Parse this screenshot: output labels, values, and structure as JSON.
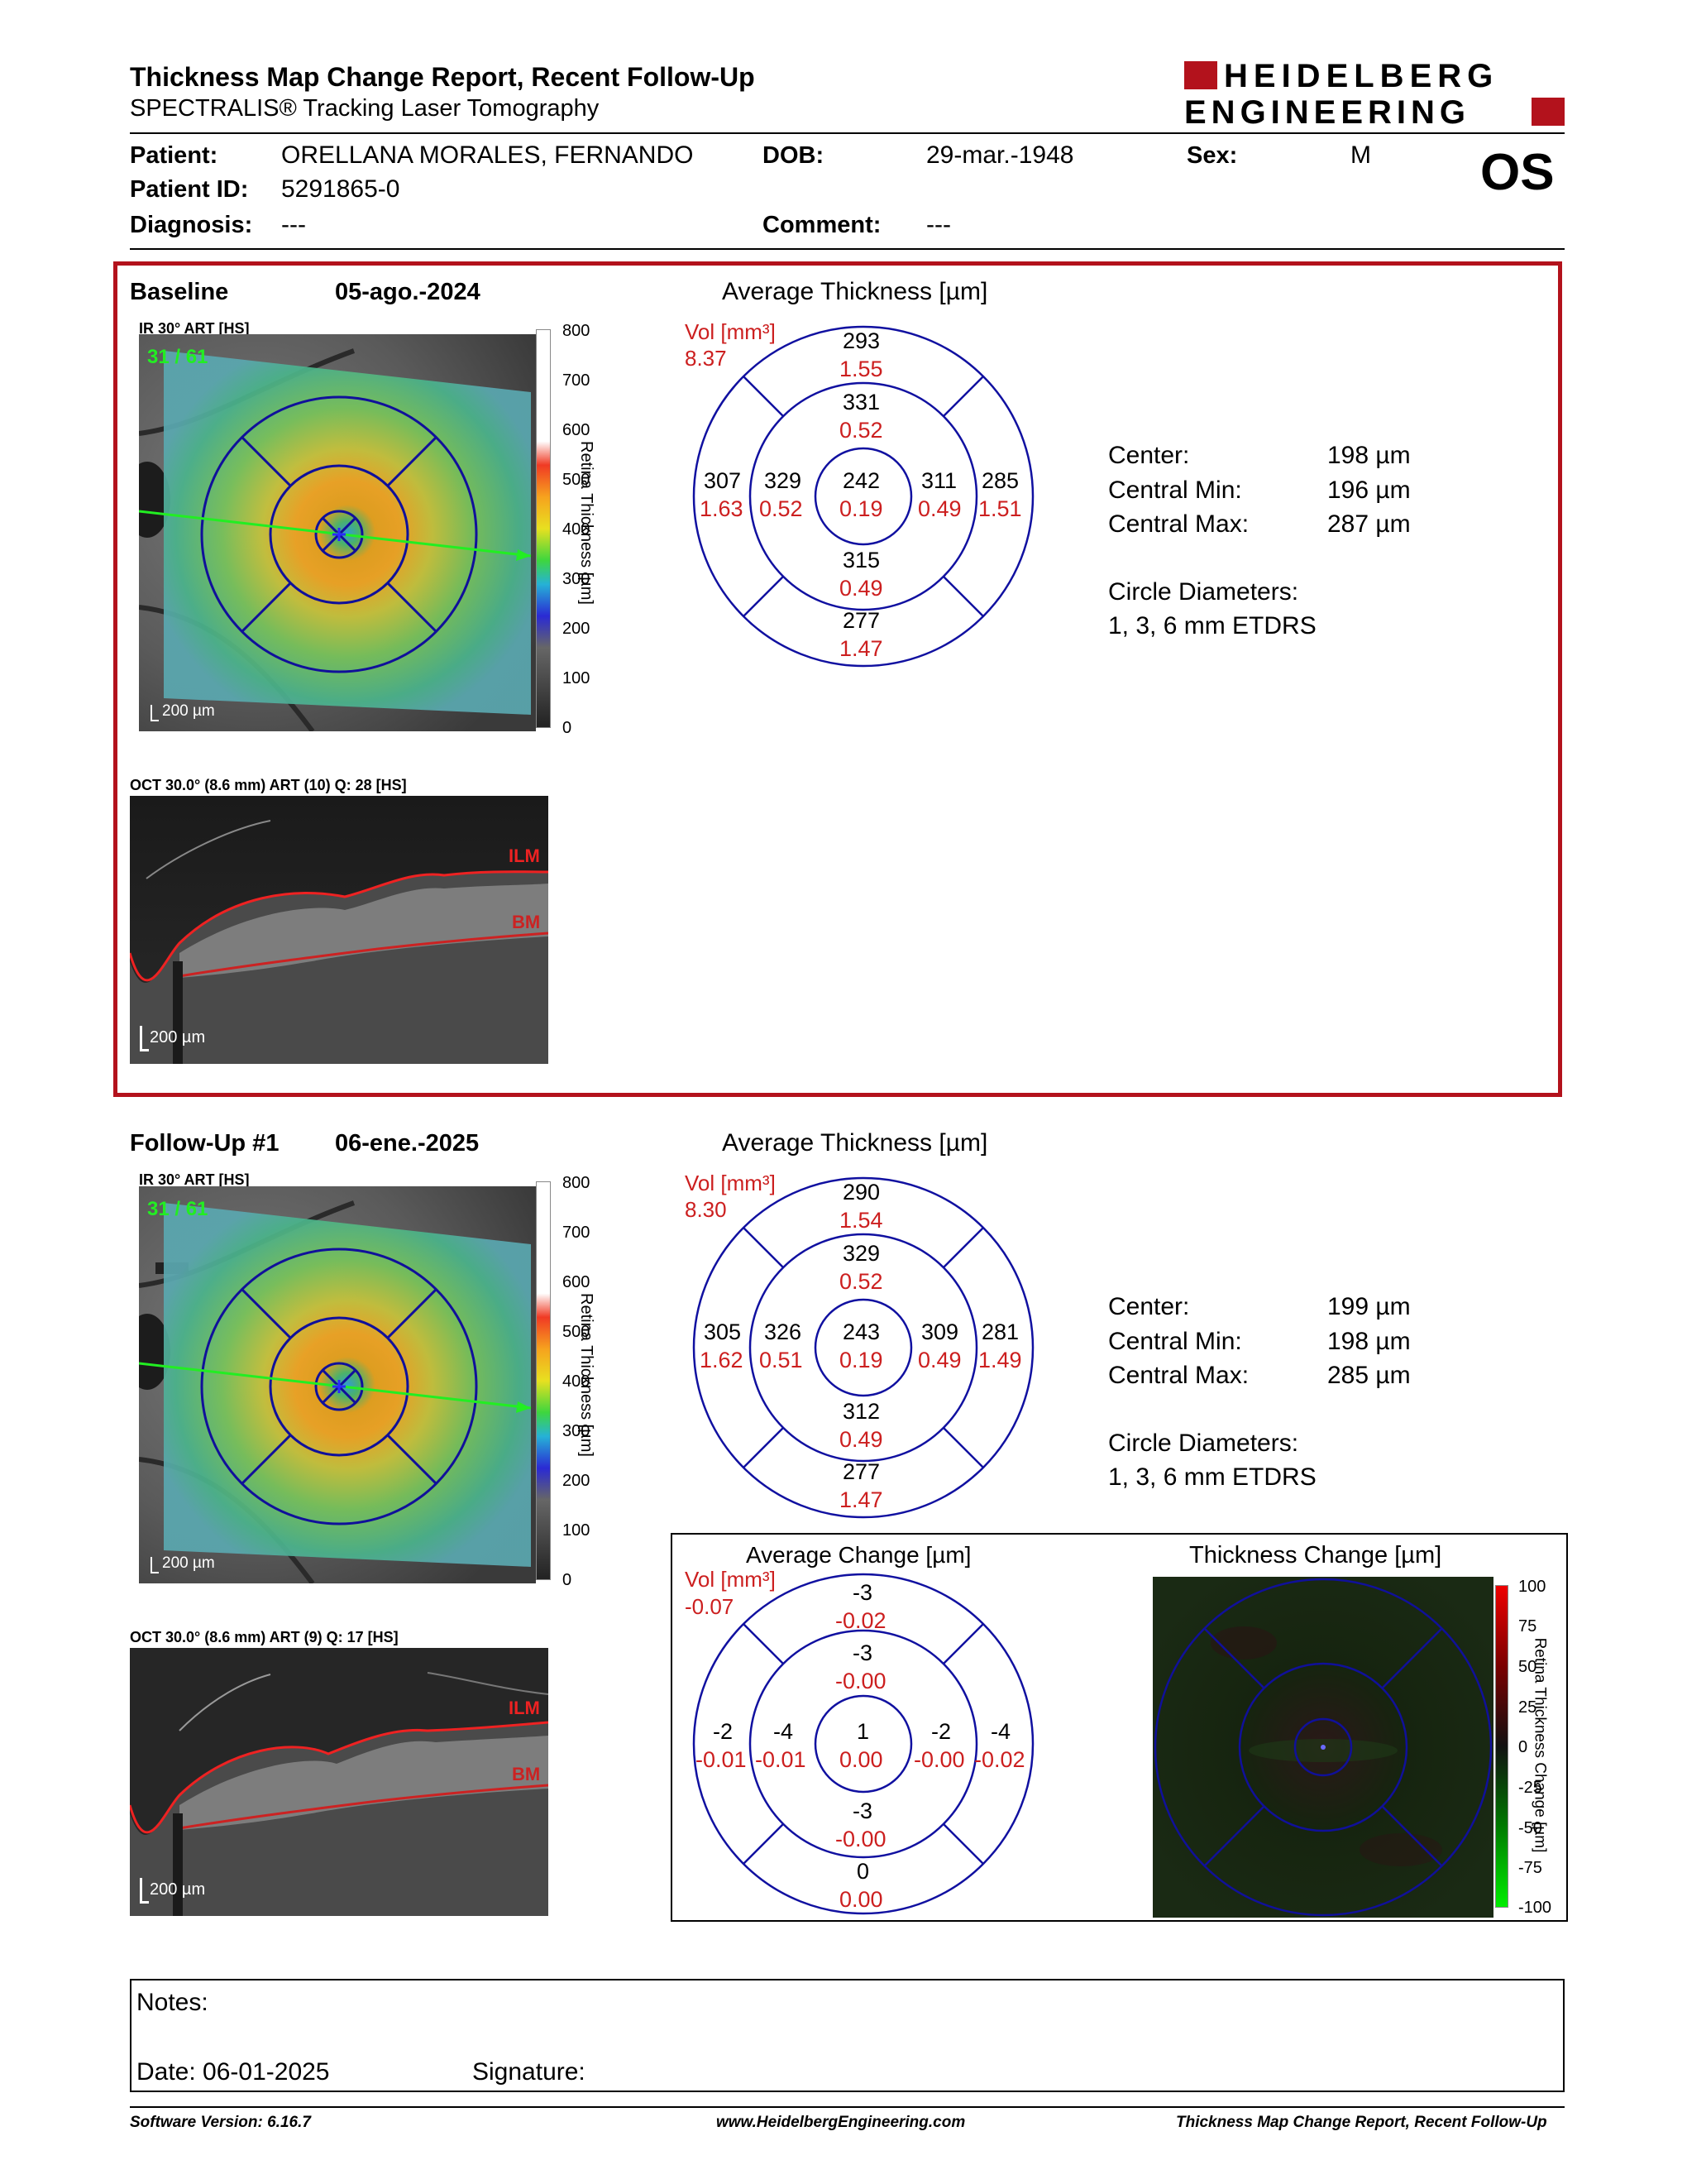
{
  "header": {
    "title": "Thickness Map Change Report, Recent Follow-Up",
    "subtitle": "SPECTRALIS® Tracking Laser Tomography",
    "logo_line1": "HEIDELBERG",
    "logo_line2": "ENGINEERING"
  },
  "patient": {
    "patient_label": "Patient:",
    "patient_value": "ORELLANA MORALES, FERNANDO",
    "dob_label": "DOB:",
    "dob_value": "29-mar.-1948",
    "sex_label": "Sex:",
    "sex_value": "M",
    "id_label": "Patient ID:",
    "id_value": "5291865-0",
    "eye": "OS",
    "diagnosis_label": "Diagnosis:",
    "diagnosis_value": "---",
    "comment_label": "Comment:",
    "comment_value": "---"
  },
  "baseline": {
    "label": "Baseline",
    "date": "05-ago.-2024",
    "ir_label": "IR 30° ART [HS]",
    "frame": "31 / 61",
    "scale": "200 µm",
    "colorbar_ticks": [
      "800",
      "700",
      "600",
      "500",
      "400",
      "300",
      "200",
      "100",
      "0"
    ],
    "colorbar_title": "Retina Thickness [µm]",
    "oct_label": "OCT 30.0° (8.6 mm) ART (10) Q: 28 [HS]",
    "oct_scale": "200 µm",
    "ilm": "ILM",
    "bm": "BM",
    "grid_title": "Average Thickness [µm]",
    "vol_label": "Vol [mm³]",
    "vol_value": "8.37",
    "grid": {
      "outer_sup": "293",
      "outer_sup_vol": "1.55",
      "inner_sup": "331",
      "inner_sup_vol": "0.52",
      "outer_temp": "307",
      "outer_temp_vol": "1.63",
      "inner_temp": "329",
      "inner_temp_vol": "0.52",
      "center": "242",
      "center_vol": "0.19",
      "inner_nas": "311",
      "inner_nas_vol": "0.49",
      "outer_nas": "285",
      "outer_nas_vol": "1.51",
      "inner_inf": "315",
      "inner_inf_vol": "0.49",
      "outer_inf": "277",
      "outer_inf_vol": "1.47"
    },
    "stats": {
      "center_label": "Center:",
      "center_value": "198 µm",
      "min_label": "Central Min:",
      "min_value": "196 µm",
      "max_label": "Central Max:",
      "max_value": "287 µm",
      "diam_label": "Circle Diameters:",
      "diam_value": "1, 3, 6 mm ETDRS"
    }
  },
  "followup": {
    "label": "Follow-Up #1",
    "date": "06-ene.-2025",
    "ir_label": "IR 30° ART [HS]",
    "frame": "31 / 61",
    "scale": "200 µm",
    "colorbar_ticks": [
      "800",
      "700",
      "600",
      "500",
      "400",
      "300",
      "200",
      "100",
      "0"
    ],
    "colorbar_title": "Retina Thickness [µm]",
    "oct_label": "OCT 30.0° (8.6 mm) ART (9) Q: 17 [HS]",
    "oct_scale": "200 µm",
    "ilm": "ILM",
    "bm": "BM",
    "grid_title": "Average Thickness [µm]",
    "vol_label": "Vol [mm³]",
    "vol_value": "8.30",
    "grid": {
      "outer_sup": "290",
      "outer_sup_vol": "1.54",
      "inner_sup": "329",
      "inner_sup_vol": "0.52",
      "outer_temp": "305",
      "outer_temp_vol": "1.62",
      "inner_temp": "326",
      "inner_temp_vol": "0.51",
      "center": "243",
      "center_vol": "0.19",
      "inner_nas": "309",
      "inner_nas_vol": "0.49",
      "outer_nas": "281",
      "outer_nas_vol": "1.49",
      "inner_inf": "312",
      "inner_inf_vol": "0.49",
      "outer_inf": "277",
      "outer_inf_vol": "1.47"
    },
    "stats": {
      "center_label": "Center:",
      "center_value": "199 µm",
      "min_label": "Central Min:",
      "min_value": "198 µm",
      "max_label": "Central Max:",
      "max_value": "285 µm",
      "diam_label": "Circle Diameters:",
      "diam_value": "1, 3, 6 mm ETDRS"
    }
  },
  "change": {
    "grid_title": "Average Change [µm]",
    "vol_label": "Vol [mm³]",
    "vol_value": "-0.07",
    "grid": {
      "outer_sup": "-3",
      "outer_sup_vol": "-0.02",
      "inner_sup": "-3",
      "inner_sup_vol": "-0.00",
      "outer_temp": "-2",
      "outer_temp_vol": "-0.01",
      "inner_temp": "-4",
      "inner_temp_vol": "-0.01",
      "center": "1",
      "center_vol": "0.00",
      "inner_nas": "-2",
      "inner_nas_vol": "-0.00",
      "outer_nas": "-4",
      "outer_nas_vol": "-0.02",
      "inner_inf": "-3",
      "inner_inf_vol": "-0.00",
      "outer_inf": "0",
      "outer_inf_vol": "0.00"
    },
    "map_title": "Thickness Change [µm]",
    "map_ticks": [
      "100",
      "75",
      "50",
      "25",
      "0",
      "-25",
      "-50",
      "-75",
      "-100"
    ],
    "map_colorbar_title": "Retina Thickness Change [µm]"
  },
  "notes": {
    "notes_label": "Notes:",
    "date_label": "Date: 06-01-2025",
    "signature_label": "Signature:"
  },
  "footer": {
    "software": "Software Version: 6.16.7",
    "url": "www.HeidelbergEngineering.com",
    "report": "Thickness Map Change Report, Recent Follow-Up"
  }
}
